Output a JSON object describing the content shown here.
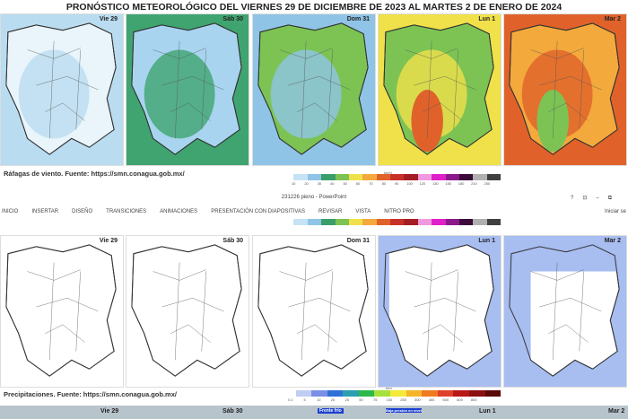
{
  "title": "PRONÓSTICO METEOROLÓGICO DEL VIERNES 29 DE DICIEMBRE DE 2023 AL MARTES 2 DE ENERO DE 2024",
  "days": [
    "Vie 29",
    "Sáb 30",
    "Dom 31",
    "Lun 1",
    "Mar 2"
  ],
  "wind": {
    "caption": "Ráfagas de viento.  Fuente: https://smn.conagua.gob.mx/",
    "unit": "km/h",
    "ticks": [
      "10",
      "20",
      "30",
      "40",
      "50",
      "60",
      "70",
      "80",
      "90",
      "100",
      "120",
      "130",
      "150",
      "180",
      "210",
      "250"
    ],
    "colors": [
      "#ffffff",
      "#c6e3f5",
      "#8fc4e6",
      "#3a9e6b",
      "#7cc354",
      "#f0e14a",
      "#f4a93c",
      "#e0622a",
      "#c8302a",
      "#a51d24",
      "#f099e0",
      "#e020c8",
      "#8a1a8a",
      "#3a0a3a",
      "#b0b0b0",
      "#404040"
    ],
    "panel_colors": [
      [
        "#e9f4fb",
        "#b9dcf0"
      ],
      [
        "#a8d4ef",
        "#3fa46f"
      ],
      [
        "#7cc354",
        "#8fc4e6"
      ],
      [
        "#7cc354",
        "#f0e14a",
        "#e0622a"
      ],
      [
        "#f4a93c",
        "#e0622a",
        "#7cc354"
      ]
    ]
  },
  "powerpoint": {
    "window_title": "231226 pieno - PowerPoint",
    "menu": [
      "INICIO",
      "INSERTAR",
      "DISEÑO",
      "TRANSICIONES",
      "ANIMACIONES",
      "PRESENTACIÓN CON DIAPOSITIVAS",
      "REVISAR",
      "VISTA",
      "NITRO PRO"
    ],
    "signin": "Iniciar se",
    "controls": [
      "?",
      "⊡",
      "–",
      "⧉"
    ]
  },
  "precip": {
    "caption": "Precipitaciones.  Fuente: https://smn.conagua.gob.mx/",
    "unit": "mm",
    "ticks": [
      "0.1",
      "5",
      "10",
      "20",
      "25",
      "50",
      "75",
      "150",
      "250",
      "300",
      "400",
      "500",
      "600",
      "800"
    ],
    "colors": [
      "#ffffff",
      "#c0cdf5",
      "#7b8fe6",
      "#2f6fd8",
      "#2a9fb0",
      "#2fb84a",
      "#a6e03a",
      "#f5e93a",
      "#f5b42a",
      "#ef7a22",
      "#e0402a",
      "#b81818",
      "#8a1010",
      "#5a0808"
    ],
    "panel_colors": [
      null,
      null,
      null,
      "#a8bdf0",
      "#a8bdf0"
    ]
  },
  "bottom_strip": {
    "labels": [
      "Vie 29",
      "Sáb 30",
      "Lun 1",
      "Mar 2"
    ],
    "front_label": "Frente frío",
    "low_label": "Baja presión en niveles medios y altos"
  }
}
